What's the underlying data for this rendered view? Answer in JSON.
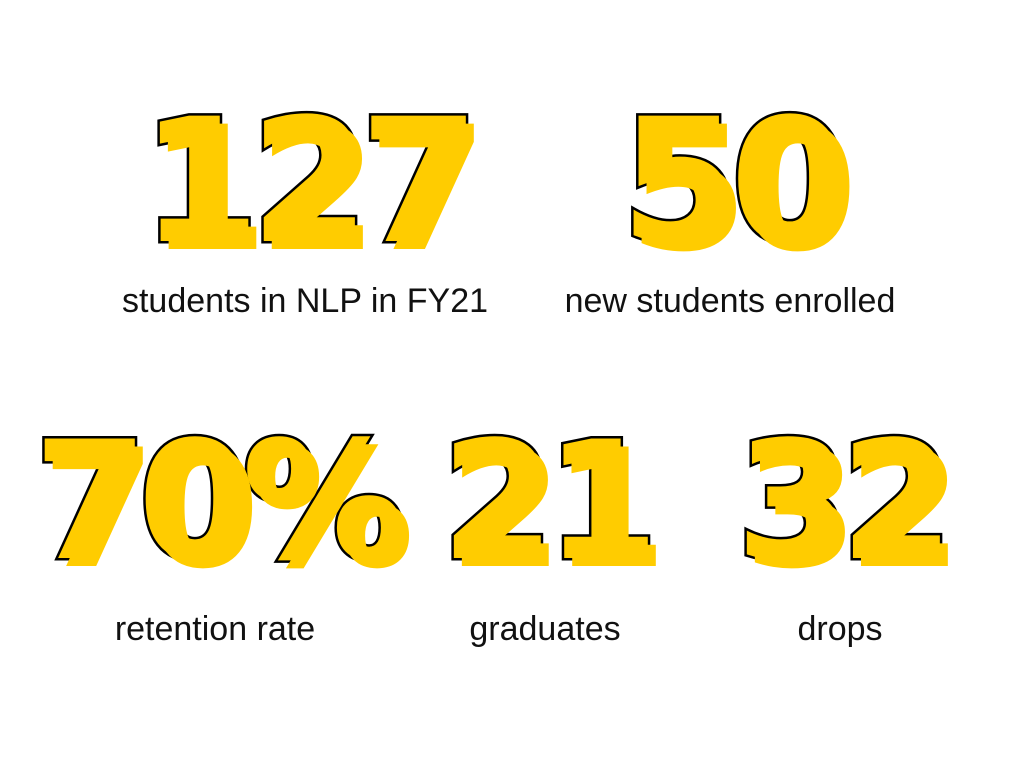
{
  "colors": {
    "accent": "#ffcc00",
    "outline": "#000000",
    "text": "#111111",
    "background": "#ffffff"
  },
  "stats": [
    {
      "value": "127",
      "label": "students in NLP in FY21"
    },
    {
      "value": "50",
      "label": "new students enrolled"
    },
    {
      "value": "70%",
      "label": "retention rate"
    },
    {
      "value": "21",
      "label": "graduates"
    },
    {
      "value": "32",
      "label": "drops"
    }
  ]
}
